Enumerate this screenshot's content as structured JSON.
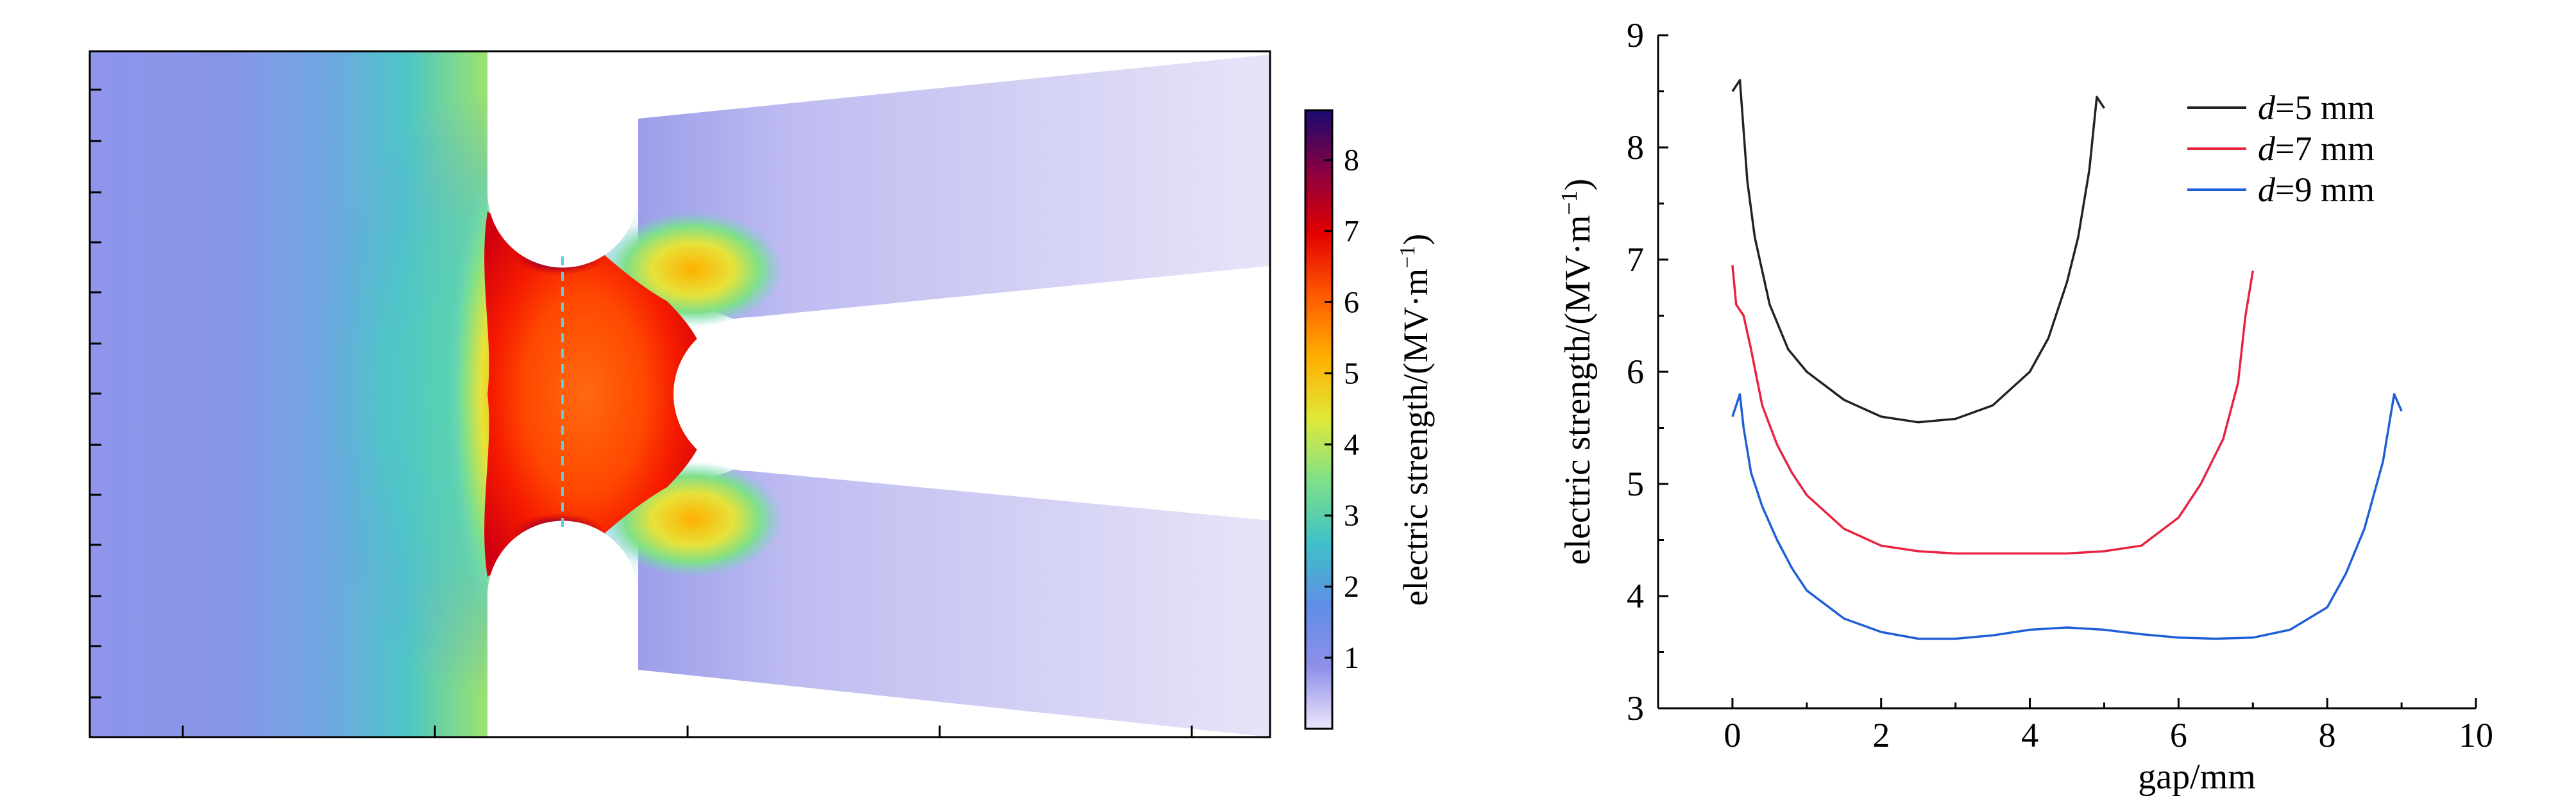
{
  "field_map": {
    "colorbar": {
      "label": "electric strength/(MV·m",
      "label_exp": "−1",
      "label_close": ")",
      "ticks": [
        "1",
        "2",
        "3",
        "4",
        "5",
        "6",
        "7",
        "8"
      ],
      "range": [
        0,
        8.7
      ],
      "colors": [
        "#ece6fa",
        "#8f8fe8",
        "#5f8ee6",
        "#3fc1c8",
        "#7ee08a",
        "#dfe83a",
        "#ffb000",
        "#ff5a00",
        "#e40000",
        "#8a0040",
        "#1a0a70"
      ]
    },
    "colors": {
      "ambient": "#8d94ea",
      "far_field": "#ddd9f6",
      "gap_peak": "#e40000",
      "gap_high": "#ff6a10",
      "electrode_tip": "#2a0a60",
      "mid_line": "#5ad0e0"
    }
  },
  "chart_data": {
    "type": "line",
    "xlabel": "gap/mm",
    "ylabel": "electric strength/(MV·m",
    "ylabel_exp": "−1",
    "ylabel_close": ")",
    "xlim": [
      -1,
      10
    ],
    "ylim": [
      3,
      9
    ],
    "xticks": [
      0,
      2,
      4,
      6,
      8,
      10
    ],
    "yticks": [
      3,
      4,
      5,
      6,
      7,
      8,
      9
    ],
    "grid": false,
    "legend_position": "top-right",
    "series": [
      {
        "name_prefix": "d",
        "name_suffix": "=5 mm",
        "color": "#222222",
        "x": [
          0.0,
          0.1,
          0.2,
          0.3,
          0.5,
          0.75,
          1.0,
          1.5,
          2.0,
          2.5,
          3.0,
          3.5,
          4.0,
          4.25,
          4.5,
          4.65,
          4.8,
          4.9,
          5.0
        ],
        "y": [
          8.5,
          8.6,
          7.7,
          7.2,
          6.6,
          6.2,
          6.0,
          5.75,
          5.6,
          5.55,
          5.58,
          5.7,
          6.0,
          6.3,
          6.8,
          7.2,
          7.8,
          8.45,
          8.35
        ]
      },
      {
        "name_prefix": "d",
        "name_suffix": "=7 mm",
        "color": "#e8223f",
        "x": [
          0.0,
          0.05,
          0.15,
          0.25,
          0.4,
          0.6,
          0.8,
          1.0,
          1.5,
          2.0,
          2.5,
          3.0,
          3.5,
          4.0,
          4.5,
          5.0,
          5.5,
          6.0,
          6.3,
          6.6,
          6.8,
          6.9,
          7.0
        ],
        "y": [
          6.95,
          6.6,
          6.5,
          6.2,
          5.7,
          5.35,
          5.1,
          4.9,
          4.6,
          4.45,
          4.4,
          4.38,
          4.38,
          4.38,
          4.38,
          4.4,
          4.45,
          4.7,
          5.0,
          5.4,
          5.9,
          6.5,
          6.9
        ]
      },
      {
        "name_prefix": "d",
        "name_suffix": "=9 mm",
        "color": "#1f5fd6",
        "x": [
          0.0,
          0.1,
          0.15,
          0.25,
          0.4,
          0.6,
          0.8,
          1.0,
          1.5,
          2.0,
          2.5,
          3.0,
          3.5,
          4.0,
          4.5,
          5.0,
          5.5,
          6.0,
          6.5,
          7.0,
          7.5,
          8.0,
          8.25,
          8.5,
          8.75,
          8.9,
          9.0
        ],
        "y": [
          5.6,
          5.8,
          5.5,
          5.1,
          4.8,
          4.5,
          4.25,
          4.05,
          3.8,
          3.68,
          3.62,
          3.62,
          3.65,
          3.7,
          3.72,
          3.7,
          3.66,
          3.63,
          3.62,
          3.63,
          3.7,
          3.9,
          4.2,
          4.6,
          5.2,
          5.8,
          5.65
        ]
      }
    ]
  }
}
